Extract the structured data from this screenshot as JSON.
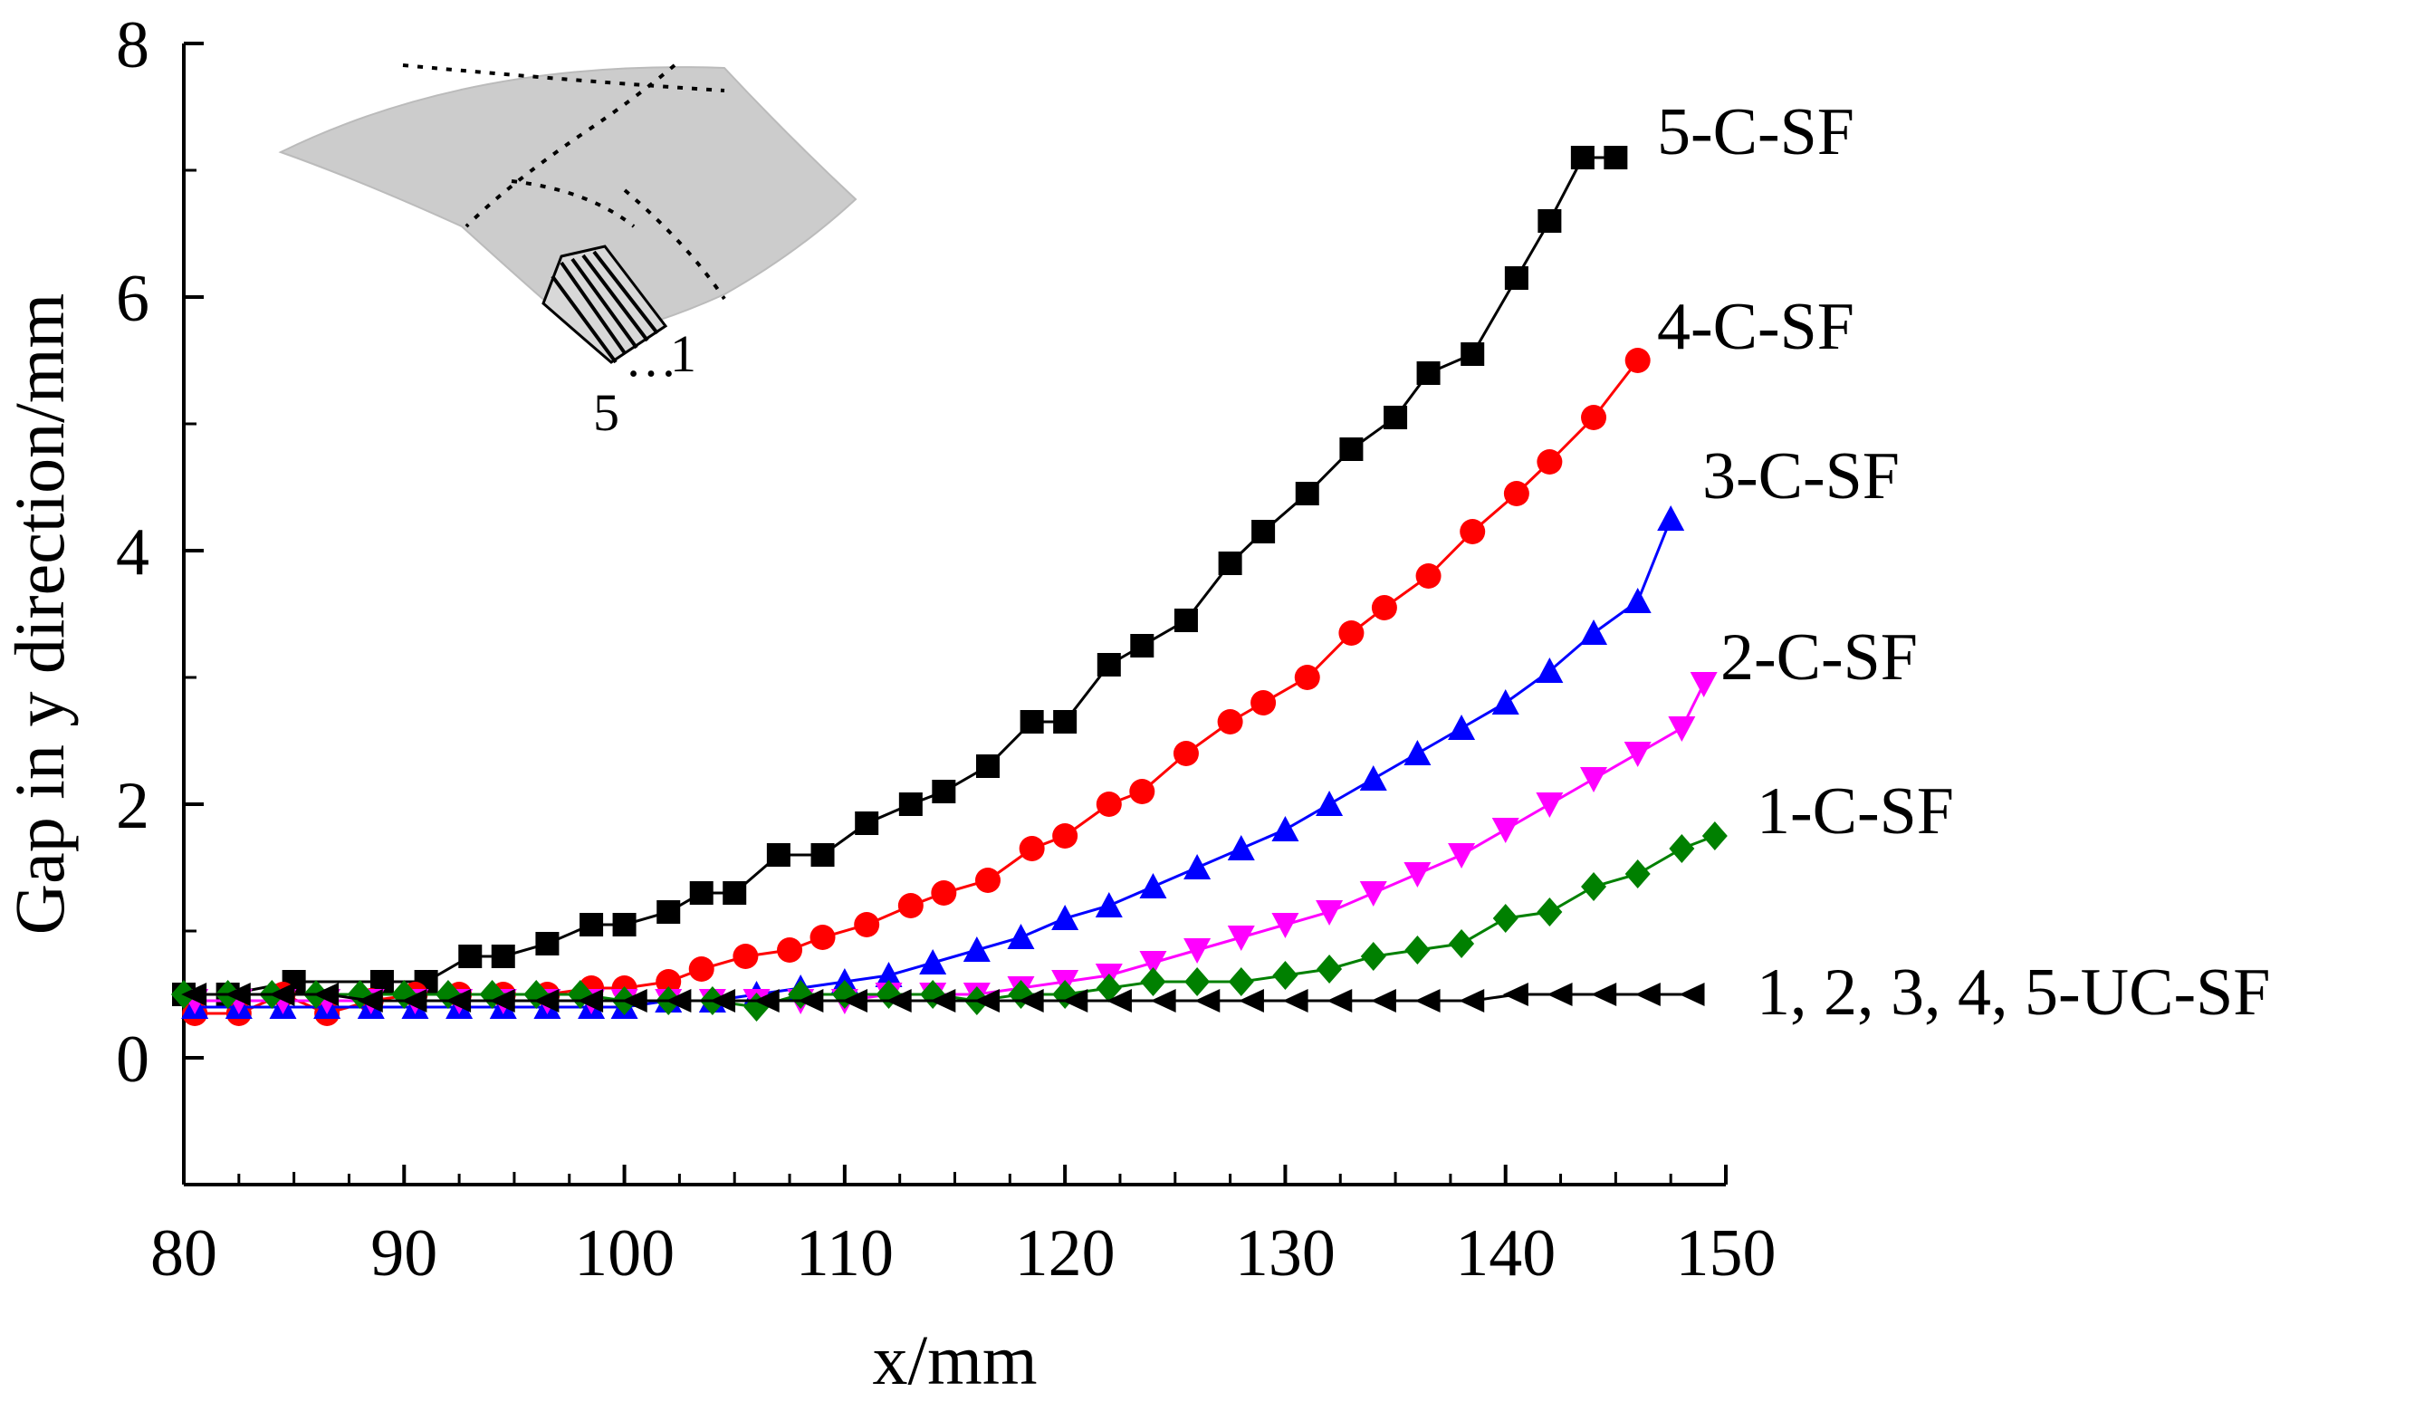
{
  "chart_data": {
    "type": "line",
    "title": "",
    "xlabel": "x/mm",
    "ylabel": "Gap in y direction/mm",
    "xlim": [
      80,
      150
    ],
    "ylim": [
      -1,
      8
    ],
    "xticks": [
      80,
      90,
      100,
      110,
      120,
      130,
      140,
      150
    ],
    "yticks": [
      0,
      2,
      4,
      6,
      8
    ],
    "grid": false,
    "legend": "inline labels at line ends",
    "inset": {
      "description": "curved surface with grid and strip markers",
      "label_start": "5",
      "label_dots": "…",
      "label_end": "1"
    },
    "series": [
      {
        "name": "5-C-SF",
        "color": "#000000",
        "marker": "square",
        "x": [
          80,
          82,
          85,
          89,
          91,
          93,
          94.5,
          96.5,
          98.5,
          100,
          102,
          103.5,
          105,
          107,
          109,
          111,
          113,
          114.5,
          116.5,
          118.5,
          120,
          122,
          123.5,
          125.5,
          127.5,
          129,
          131,
          133,
          135,
          136.5,
          138.5,
          140.5,
          142,
          143.5,
          145
        ],
        "values": [
          0.5,
          0.5,
          0.6,
          0.6,
          0.6,
          0.8,
          0.8,
          0.9,
          1.05,
          1.05,
          1.15,
          1.3,
          1.3,
          1.6,
          1.6,
          1.85,
          2.0,
          2.1,
          2.3,
          2.65,
          2.65,
          3.1,
          3.25,
          3.45,
          3.9,
          4.15,
          4.45,
          4.8,
          5.05,
          5.4,
          5.55,
          6.15,
          6.6,
          7.1,
          7.1
        ]
      },
      {
        "name": "4-C-SF",
        "color": "#ff0000",
        "marker": "circle",
        "x": [
          80.5,
          82.5,
          84.5,
          86.5,
          88.5,
          90.5,
          92.5,
          94.5,
          96.5,
          98.5,
          100,
          102,
          103.5,
          105.5,
          107.5,
          109,
          111,
          113,
          114.5,
          116.5,
          118.5,
          120,
          122,
          123.5,
          125.5,
          127.5,
          129,
          131,
          133,
          134.5,
          136.5,
          138.5,
          140.5,
          142,
          144,
          146
        ],
        "values": [
          0.35,
          0.35,
          0.5,
          0.35,
          0.45,
          0.5,
          0.5,
          0.5,
          0.5,
          0.55,
          0.55,
          0.6,
          0.7,
          0.8,
          0.85,
          0.95,
          1.05,
          1.2,
          1.3,
          1.4,
          1.65,
          1.75,
          2.0,
          2.1,
          2.4,
          2.65,
          2.8,
          3.0,
          3.35,
          3.55,
          3.8,
          4.15,
          4.45,
          4.7,
          5.05,
          5.5
        ]
      },
      {
        "name": "3-C-SF",
        "color": "#0000ff",
        "marker": "triangle-up",
        "x": [
          80.5,
          82.5,
          84.5,
          86.5,
          88.5,
          90.5,
          92.5,
          94.5,
          96.5,
          98.5,
          100,
          102,
          104,
          106,
          108,
          110,
          112,
          114,
          116,
          118,
          120,
          122,
          124,
          126,
          128,
          130,
          132,
          134,
          136,
          138,
          140,
          142,
          144,
          146,
          147.5
        ],
        "values": [
          0.4,
          0.4,
          0.4,
          0.4,
          0.4,
          0.4,
          0.4,
          0.4,
          0.4,
          0.4,
          0.4,
          0.45,
          0.45,
          0.5,
          0.55,
          0.6,
          0.65,
          0.75,
          0.85,
          0.95,
          1.1,
          1.2,
          1.35,
          1.5,
          1.65,
          1.8,
          2.0,
          2.2,
          2.4,
          2.6,
          2.8,
          3.05,
          3.35,
          3.6,
          4.25
        ]
      },
      {
        "name": "2-C-SF",
        "color": "#ff00ff",
        "marker": "triangle-down",
        "x": [
          80.5,
          82.5,
          84.5,
          86.5,
          88.5,
          90.5,
          92.5,
          94.5,
          96.5,
          98.5,
          100,
          102,
          104,
          106,
          108,
          110,
          112,
          114,
          116,
          118,
          120,
          122,
          124,
          126,
          128,
          130,
          132,
          134,
          136,
          138,
          140,
          142,
          144,
          146,
          148,
          149
        ],
        "values": [
          0.45,
          0.45,
          0.45,
          0.45,
          0.45,
          0.45,
          0.45,
          0.45,
          0.45,
          0.45,
          0.45,
          0.45,
          0.45,
          0.45,
          0.45,
          0.45,
          0.5,
          0.5,
          0.5,
          0.55,
          0.6,
          0.65,
          0.75,
          0.85,
          0.95,
          1.05,
          1.15,
          1.3,
          1.45,
          1.6,
          1.8,
          2.0,
          2.2,
          2.4,
          2.6,
          2.95
        ]
      },
      {
        "name": "1-C-SF",
        "color": "#008000",
        "marker": "diamond",
        "x": [
          80,
          82,
          84,
          86,
          88,
          90,
          92,
          94,
          96,
          98,
          100,
          102,
          104,
          106,
          108,
          110,
          112,
          114,
          116,
          118,
          120,
          122,
          124,
          126,
          128,
          130,
          132,
          134,
          136,
          138,
          140,
          142,
          144,
          146,
          148,
          149.5
        ],
        "values": [
          0.5,
          0.5,
          0.5,
          0.5,
          0.5,
          0.5,
          0.5,
          0.5,
          0.5,
          0.5,
          0.45,
          0.45,
          0.45,
          0.4,
          0.5,
          0.5,
          0.5,
          0.5,
          0.45,
          0.5,
          0.5,
          0.55,
          0.6,
          0.6,
          0.6,
          0.65,
          0.7,
          0.8,
          0.85,
          0.9,
          1.1,
          1.15,
          1.35,
          1.45,
          1.65,
          1.75
        ]
      },
      {
        "name": "1, 2, 3, 4, 5-UC-SF",
        "color": "#000000",
        "marker": "triangle-left",
        "x": [
          80.5,
          82.5,
          84.5,
          86.5,
          88.5,
          90.5,
          92.5,
          94.5,
          96.5,
          98.5,
          100.5,
          102.5,
          104.5,
          106.5,
          108.5,
          110.5,
          112.5,
          114.5,
          116.5,
          118.5,
          120.5,
          122.5,
          124.5,
          126.5,
          128.5,
          130.5,
          132.5,
          134.5,
          136.5,
          138.5,
          140.5,
          142.5,
          144.5,
          146.5,
          148.5
        ],
        "values": [
          0.5,
          0.5,
          0.5,
          0.5,
          0.45,
          0.45,
          0.45,
          0.45,
          0.45,
          0.45,
          0.45,
          0.45,
          0.45,
          0.45,
          0.45,
          0.45,
          0.45,
          0.45,
          0.45,
          0.45,
          0.45,
          0.45,
          0.45,
          0.45,
          0.45,
          0.45,
          0.45,
          0.45,
          0.45,
          0.45,
          0.5,
          0.5,
          0.5,
          0.5,
          0.5
        ]
      }
    ]
  }
}
